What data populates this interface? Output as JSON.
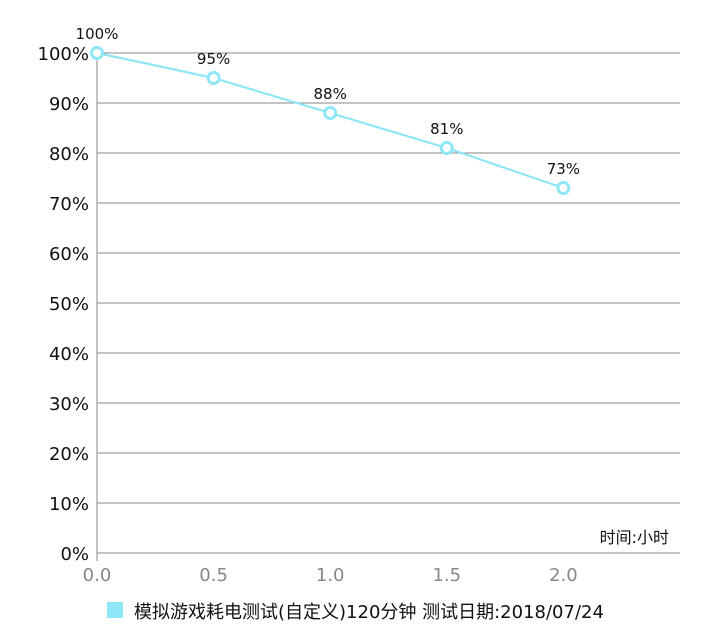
{
  "chart_data": {
    "type": "line",
    "x": [
      0.0,
      0.5,
      1.0,
      1.5,
      2.0
    ],
    "series": [
      {
        "name": "模拟游戏耗电测试(自定义)120分钟  测试日期:2018/07/24",
        "values": [
          100,
          95,
          88,
          81,
          73
        ],
        "data_labels": [
          "100%",
          "95%",
          "88%",
          "81%",
          "73%"
        ],
        "color": "#8ee6f7"
      }
    ],
    "x_ticks": [
      "0.0",
      "0.5",
      "1.0",
      "1.5",
      "2.0"
    ],
    "y_ticks": [
      "0%",
      "10%",
      "20%",
      "30%",
      "40%",
      "50%",
      "60%",
      "70%",
      "80%",
      "90%",
      "100%"
    ],
    "xlim": [
      0,
      2.5
    ],
    "ylim": [
      0,
      100
    ],
    "unit_label": "时间:小时",
    "grid": "horizontal",
    "legend": "bottom-center",
    "colors": {
      "grid": "#888888",
      "x_tick": "#888888",
      "text": "#111111"
    }
  }
}
